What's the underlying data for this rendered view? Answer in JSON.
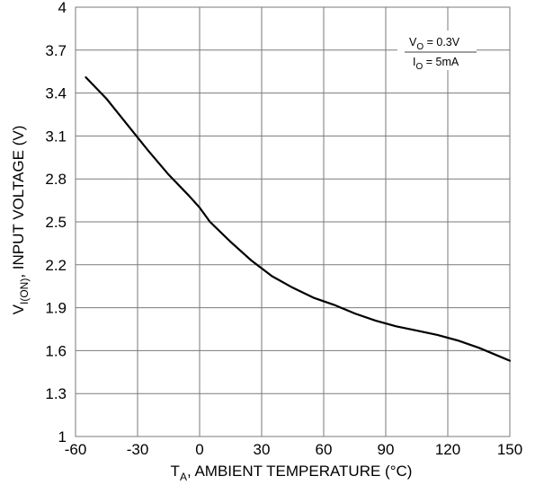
{
  "chart_data": {
    "type": "line",
    "x_ticks": [
      "-60",
      "-30",
      "0",
      "30",
      "60",
      "90",
      "120",
      "150"
    ],
    "y_ticks": [
      "1",
      "1.3",
      "1.6",
      "1.9",
      "2.2",
      "2.5",
      "2.8",
      "3.1",
      "3.4",
      "3.7",
      "4"
    ],
    "xlim": [
      -60,
      150
    ],
    "ylim": [
      1,
      4
    ],
    "grid": true,
    "xlabel": {
      "main": "T",
      "sub": "A",
      "rest": ", AMBIENT TEMPERATURE (°C)"
    },
    "ylabel": {
      "main": "V",
      "sub": "I(ON)",
      "rest": ", INPUT VOLTAGE (V)"
    },
    "conditions": [
      {
        "main": "V",
        "sub": "O",
        "rest": " = 0.3V"
      },
      {
        "main": "I",
        "sub": "O",
        "rest": " = 5mA"
      }
    ],
    "series": [
      {
        "x": [
          -55,
          -45,
          -35,
          -25,
          -15,
          -5,
          0,
          5,
          15,
          25,
          35,
          45,
          55,
          65,
          75,
          85,
          95,
          105,
          115,
          125,
          135,
          145,
          150
        ],
        "y": [
          3.51,
          3.36,
          3.18,
          3.0,
          2.83,
          2.68,
          2.6,
          2.5,
          2.36,
          2.23,
          2.12,
          2.04,
          1.97,
          1.92,
          1.86,
          1.81,
          1.77,
          1.74,
          1.71,
          1.67,
          1.62,
          1.56,
          1.53
        ]
      }
    ]
  }
}
